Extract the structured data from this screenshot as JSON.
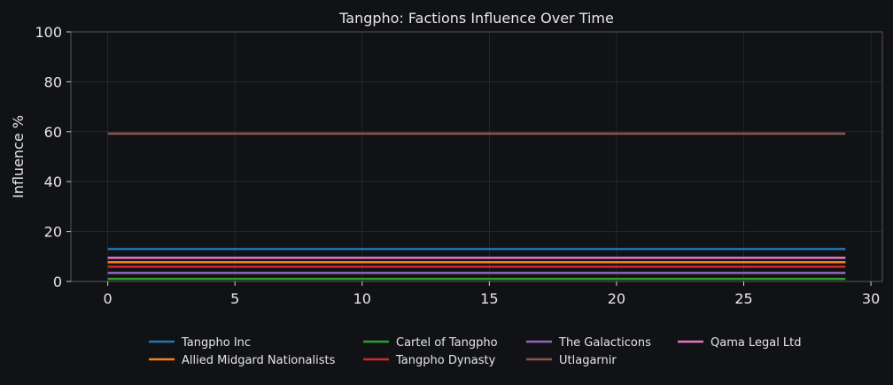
{
  "chart_data": {
    "type": "line",
    "title": "Tangpho: Factions Influence Over Time",
    "xlabel": "",
    "ylabel": "Influence %",
    "xlim": [
      -1.45,
      30.45
    ],
    "ylim": [
      0,
      100
    ],
    "xticks": [
      0,
      5,
      10,
      15,
      20,
      25,
      30
    ],
    "yticks": [
      0,
      20,
      40,
      60,
      80,
      100
    ],
    "grid": true,
    "legend_position": "bottom-center",
    "x": [
      0,
      29
    ],
    "series": [
      {
        "name": "Tangpho Inc",
        "color": "#1f77b4",
        "value": 13.0
      },
      {
        "name": "Allied Midgard Nationalists",
        "color": "#ff7f0e",
        "value": 7.7
      },
      {
        "name": "Cartel of Tangpho",
        "color": "#2ca02c",
        "value": 1.0
      },
      {
        "name": "Tangpho Dynasty",
        "color": "#d62728",
        "value": 5.9
      },
      {
        "name": "The Galacticons",
        "color": "#9467bd",
        "value": 3.4
      },
      {
        "name": "Utlagarnir",
        "color": "#8c564b",
        "value": 59.2
      },
      {
        "name": "Qama Legal Ltd",
        "color": "#e377c2",
        "value": 9.5
      }
    ]
  }
}
